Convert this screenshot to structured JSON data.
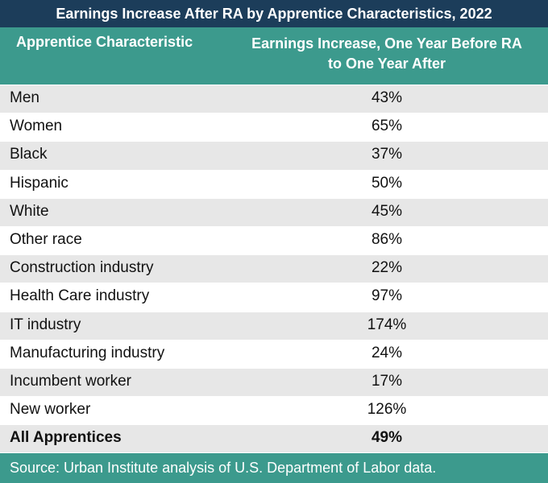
{
  "chart_data": {
    "type": "table",
    "title": "Earnings Increase After RA by Apprentice Characteristics, 2022",
    "columns": {
      "label": "Apprentice Characteristic",
      "value_line1": "Earnings Increase, One Year Before RA",
      "value_line2": "to One Year After"
    },
    "rows": [
      {
        "label": "Men",
        "value": "43%"
      },
      {
        "label": "Women",
        "value": "65%"
      },
      {
        "label": "Black",
        "value": "37%"
      },
      {
        "label": "Hispanic",
        "value": "50%"
      },
      {
        "label": "White",
        "value": "45%"
      },
      {
        "label": "Other race",
        "value": "86%"
      },
      {
        "label": "Construction industry",
        "value": "22%"
      },
      {
        "label": "Health Care industry",
        "value": "97%"
      },
      {
        "label": "IT industry",
        "value": "174%"
      },
      {
        "label": "Manufacturing industry",
        "value": "24%"
      },
      {
        "label": "Incumbent worker",
        "value": "17%"
      },
      {
        "label": "New worker",
        "value": "126%"
      }
    ],
    "total": {
      "label": "All Apprentices",
      "value": "49%"
    },
    "source": "Source: Urban Institute analysis of U.S. Department of Labor data."
  },
  "colors": {
    "title_bg": "#1c3d5a",
    "header_bg": "#3c9a8d",
    "stripe": "#e7e7e7",
    "text": "#111111"
  }
}
